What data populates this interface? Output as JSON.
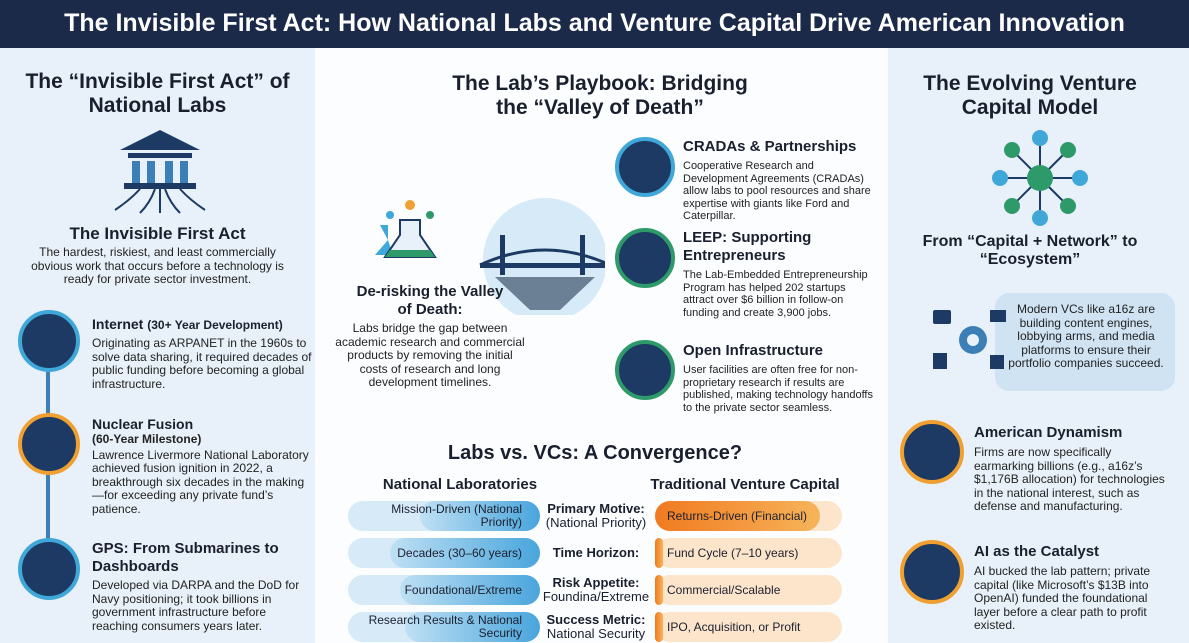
{
  "header": {
    "title": "The Invisible First Act: How National Labs and Venture Capital Drive American Innovation"
  },
  "left": {
    "title": "The “Invisible First Act” of National Labs",
    "subtitle": "The Invisible First Act",
    "description": "The hardest, riskiest, and least commercially obvious work that occurs before a technology is ready for private sector investment.",
    "items": [
      {
        "title": "Internet",
        "note": "(30+ Year Development)",
        "text": "Originating as ARPANET in the 1960s to solve data sharing, it required decades of public funding before becoming a global infrastructure."
      },
      {
        "title": "Nuclear Fusion",
        "note": "(60-Year Milestone)",
        "text": "Lawrence Livermore National Laboratory achieved fusion ignition in 2022, a breakthrough six decades in the making—for exceeding any private fund’s patience."
      },
      {
        "title": "GPS: From Submarines to Dashboards",
        "text": "Developed via DARPA and the DoD for Navy positioning; it took billions in government infrastructure before reaching consumers years later."
      }
    ]
  },
  "middle": {
    "title": "The Lab’s Playbook: Bridging the “Valley of Death”",
    "valley": {
      "title": "De-risking the Valley of Death:",
      "text": "Labs bridge the gap between academic research and commercial products by removing the initial costs of research and long development timelines."
    },
    "items": [
      {
        "title": "CRADAs & Partnerships",
        "text": "Cooperative Research and Development Agreements (CRADAs) allow labs to pool resources and share expertise with giants like Ford and Caterpillar."
      },
      {
        "title": "LEEP: Supporting Entrepreneurs",
        "text": "The Lab-Embedded Entrepreneurship Program has helped 202 startups attract over $6 billion in follow-on funding and create 3,900 jobs."
      },
      {
        "title": "Open Infrastructure",
        "text": "User facilities are often free for non-proprietary research if results are published, making technology handoffs to the private sector seamless."
      }
    ],
    "comparison": {
      "title": "Labs vs. VCs: A Convergence?",
      "left_header": "National Laboratories",
      "right_header": "Traditional Venture Capital",
      "rows": [
        {
          "left": "Mission-Driven (National Priority)",
          "label": "Primary Motive:",
          "sublabel": "(National Priority)",
          "right": "Returns-Driven (Financial)"
        },
        {
          "left": "Decades (30–60 years)",
          "label": "Time Horizon:",
          "right": "Fund Cycle (7–10 years)"
        },
        {
          "left": "Foundational/Extreme",
          "label": "Risk Appetite:",
          "sublabel": "Foundina/Extreme",
          "right": "Commercial/Scalable"
        },
        {
          "left": "Research Results & National Security",
          "label": "Success Metric:",
          "sublabel": "National Security",
          "right": "IPO, Acquisition, or Profit"
        }
      ]
    }
  },
  "right": {
    "title": "The Evolving Venture Capital Model",
    "subtitle": "From “Capital + Network” to “Ecosystem”",
    "bubble": "Modern VCs like a16z are building content engines, lobbying arms, and media platforms to ensure their portfolio companies succeed.",
    "items": [
      {
        "title": "American Dynamism",
        "text": "Firms are now specifically earmarking billions (e.g., a16z’s $1,176B allocation) for technologies in the national interest, such as defense and manufacturing."
      },
      {
        "title": "AI as the Catalyst",
        "text": "AI bucked the lab pattern; private capital (like Microsoft’s $13B into OpenAI) funded the foundational layer before a clear path to profit existed."
      }
    ]
  }
}
